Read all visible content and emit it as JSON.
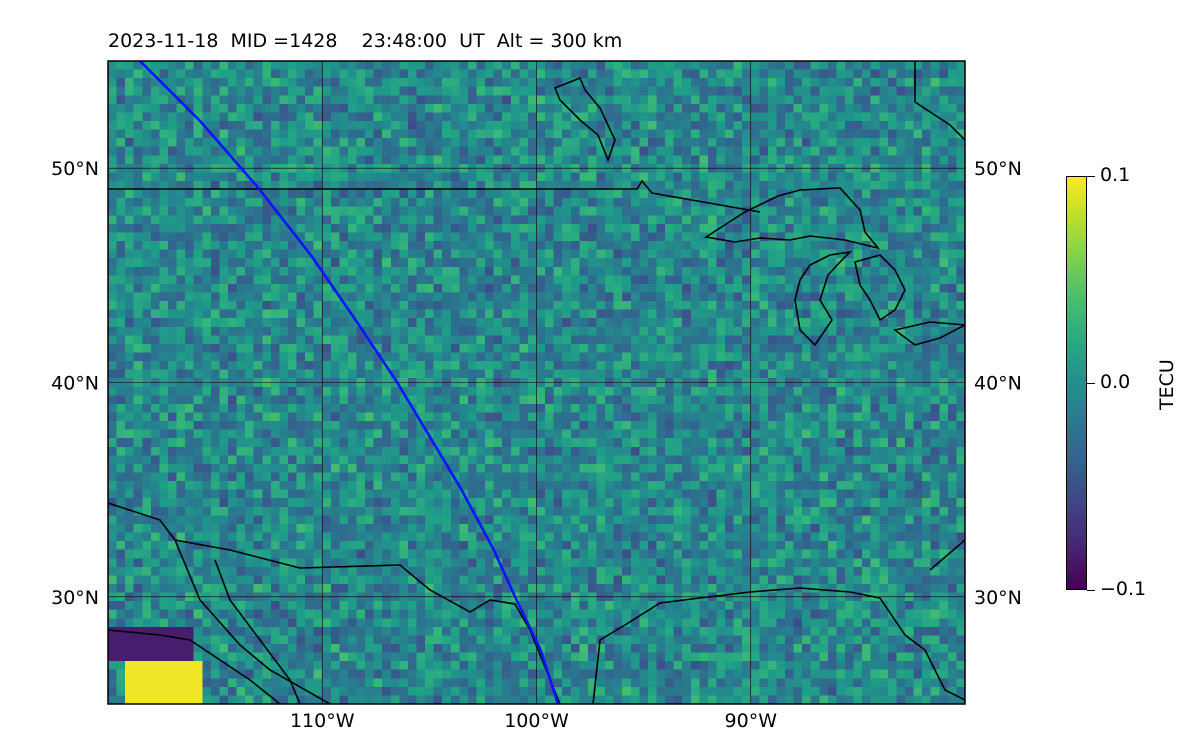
{
  "title": {
    "date": "2023-11-18",
    "mid": "MID =1428",
    "time": "23:48:00",
    "ut": "UT",
    "alt": "Alt = 300 km"
  },
  "map": {
    "projection": "plate-carree",
    "lon_range": [
      -120,
      -80
    ],
    "lat_range": [
      25,
      55
    ],
    "field": "TECU perturbation",
    "gridlines": true,
    "lon_ticks": [
      {
        "value": -110,
        "label": "110°W"
      },
      {
        "value": -100,
        "label": "100°W"
      },
      {
        "value": -90,
        "label": "90°W"
      }
    ],
    "lat_ticks": [
      {
        "value": 50,
        "label": "50°N"
      },
      {
        "value": 40,
        "label": "40°N"
      },
      {
        "value": 30,
        "label": "30°N"
      }
    ]
  },
  "colorbar": {
    "label": "TECU",
    "colormap": "viridis",
    "min": -0.1,
    "max": 0.1,
    "ticks": [
      {
        "value": 0.1,
        "label": "0.1"
      },
      {
        "value": 0.0,
        "label": "0.0"
      },
      {
        "value": -0.1,
        "label": "−0.1"
      }
    ]
  },
  "track": {
    "color": "#0a14ff",
    "points": [
      [
        -118.5,
        55
      ],
      [
        -115.7,
        52.2
      ],
      [
        -113.0,
        49.1
      ],
      [
        -110.5,
        45.9
      ],
      [
        -108.5,
        43
      ],
      [
        -106.5,
        40
      ],
      [
        -105.0,
        37.5
      ],
      [
        -103.5,
        35
      ],
      [
        -102.0,
        32.2
      ],
      [
        -101.0,
        30
      ],
      [
        -99.8,
        27.5
      ],
      [
        -99.0,
        25
      ]
    ]
  }
}
